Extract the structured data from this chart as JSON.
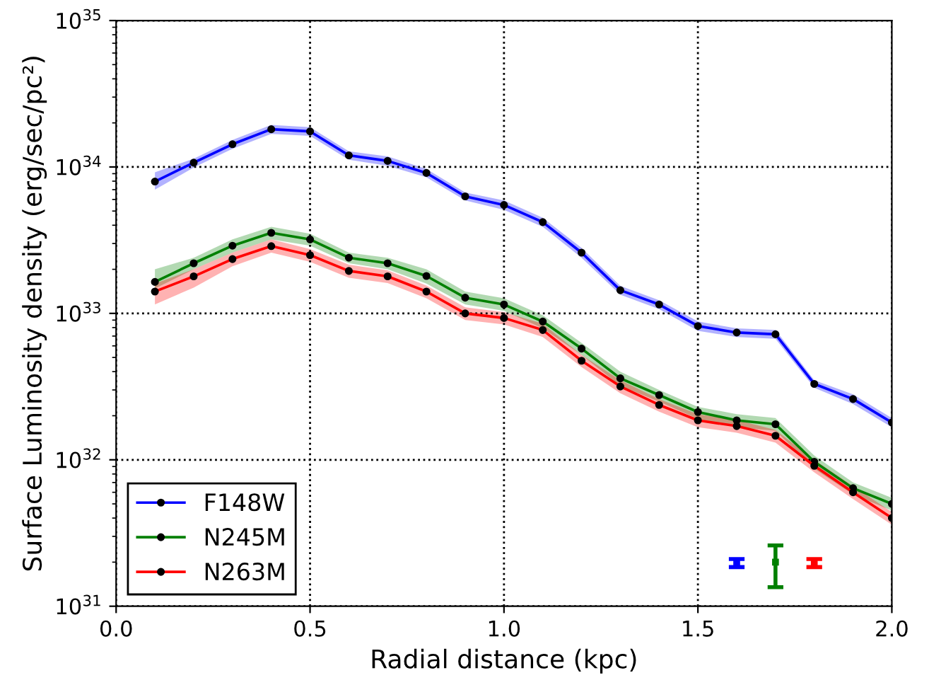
{
  "chart_data": {
    "type": "line",
    "xlabel": "Radial distance (kpc)",
    "ylabel": "Surface Luminosity density (erg/sec/pc²)",
    "x": [
      0.1,
      0.2,
      0.3,
      0.4,
      0.5,
      0.6,
      0.7,
      0.8,
      0.9,
      1.0,
      1.1,
      1.2,
      1.3,
      1.4,
      1.5,
      1.6,
      1.7,
      1.8,
      1.9,
      2.0
    ],
    "log": "y",
    "xlim": [
      0.0,
      2.0
    ],
    "xticks": [
      {
        "value": 0,
        "label": "0.0"
      },
      0.5,
      {
        "value": 1,
        "label": "1.0"
      },
      1.5,
      {
        "value": 2,
        "label": "2.0"
      }
    ],
    "ylim": [
      1e+31,
      1e+35
    ],
    "yticks": [
      {
        "value": 1e+31,
        "label": "10$^{31}$"
      },
      {
        "value": 1e+32,
        "label": "10$^{32}$"
      },
      {
        "value": 1e+33,
        "label": "10$^{33}$"
      },
      {
        "value": 1e+34,
        "label": "10$^{34}$"
      },
      {
        "value": 1e+35,
        "label": "10$^{35}$"
      }
    ],
    "grid": true,
    "legend": "bottom left",
    "marker": "circle",
    "line_style": "solid",
    "series": [
      {
        "name": "F148W",
        "color": "#0000ff",
        "values": [
          7.95e+33,
          1.07e+34,
          1.43e+34,
          1.81e+34,
          1.75e+34,
          1.2e+34,
          1.1e+34,
          9.1e+33,
          6.3e+33,
          5.5e+33,
          4.2e+33,
          2.6e+33,
          1.44e+33,
          1.15e+33,
          8.2e+32,
          7.4e+32,
          7.2e+32,
          3.3e+32,
          2.6e+32,
          1.8e+32
        ],
        "lower": [
          7e+33,
          9.9e+33,
          1.33e+34,
          1.68e+34,
          1.63e+34,
          1.12e+34,
          1.02e+34,
          8.5e+33,
          5.9e+33,
          5.1e+33,
          3.9e+33,
          2.4e+33,
          1.34e+33,
          1.07e+33,
          7.6e+32,
          6.9e+32,
          6.7e+32,
          3.1e+32,
          2.4e+32,
          1.67e+32
        ],
        "upper": [
          9.2e+33,
          1.14e+34,
          1.53e+34,
          1.94e+34,
          1.87e+34,
          1.28e+34,
          1.18e+34,
          9.7e+33,
          6.7e+33,
          5.9e+33,
          4.5e+33,
          2.8e+33,
          1.54e+33,
          1.23e+33,
          8.8e+32,
          7.9e+32,
          7.7e+32,
          3.5e+32,
          2.8e+32,
          1.93e+32
        ]
      },
      {
        "name": "N245M",
        "color": "#008000",
        "values": [
          1.64e+33,
          2.2e+33,
          2.9e+33,
          3.55e+33,
          3.2e+33,
          2.4e+33,
          2.2e+33,
          1.8e+33,
          1.28e+33,
          1.15e+33,
          8.8e+32,
          5.75e+32,
          3.6e+32,
          2.77e+32,
          2.12e+32,
          1.86e+32,
          1.75e+32,
          9.7e+31,
          6.4e+31,
          5e+31
        ],
        "lower": [
          1.48e+33,
          2e+33,
          2.6e+33,
          3.2e+33,
          2.9e+33,
          2.2e+33,
          2e+33,
          1.6e+33,
          1.15e+33,
          1.04e+33,
          7.9e+32,
          5.2e+32,
          3.2e+32,
          2.5e+32,
          1.9e+32,
          1.67e+32,
          1.58e+32,
          8.7e+31,
          5.8e+31,
          4.5e+31
        ],
        "upper": [
          2e+33,
          2.4e+33,
          3.2e+33,
          3.9e+33,
          3.5e+33,
          2.6e+33,
          2.4e+33,
          2e+33,
          1.41e+33,
          1.27e+33,
          9.7e+32,
          6.3e+32,
          4e+32,
          3e+32,
          2.3e+32,
          2.05e+32,
          1.93e+32,
          1.07e+32,
          7e+31,
          5.5e+31
        ]
      },
      {
        "name": "N263M",
        "color": "#ff0000",
        "values": [
          1.41e+33,
          1.79e+33,
          2.35e+33,
          2.88e+33,
          2.5e+33,
          1.95e+33,
          1.79e+33,
          1.41e+33,
          1e+33,
          9.3e+32,
          7.7e+32,
          4.75e+32,
          3.17e+32,
          2.37e+32,
          1.86e+32,
          1.7e+32,
          1.46e+32,
          9.1e+31,
          6e+31,
          4e+31
        ],
        "lower": [
          1.15e+33,
          1.5e+33,
          2.1e+33,
          2.6e+33,
          2.25e+33,
          1.75e+33,
          1.61e+33,
          1.27e+33,
          9e+32,
          8.4e+32,
          6.9e+32,
          4.3e+32,
          2.85e+32,
          2.13e+32,
          1.67e+32,
          1.53e+32,
          1.31e+32,
          8.2e+31,
          5.4e+31,
          3.6e+31
        ],
        "upper": [
          1.6e+33,
          2e+33,
          2.6e+33,
          3.2e+33,
          2.75e+33,
          2.15e+33,
          1.97e+33,
          1.55e+33,
          1.1e+33,
          1.02e+33,
          8.5e+32,
          5.2e+32,
          3.5e+32,
          2.6e+32,
          2.05e+32,
          1.87e+32,
          1.6e+32,
          1e+32,
          6.6e+31,
          4.4e+31
        ]
      },
      {
        "type": "scatter",
        "marker": "square",
        "color": "#0000ff",
        "x": [
          1.6
        ],
        "values": [
          2e+31
        ],
        "errors": [
          [
            1.85e+31,
            2.1e+31
          ]
        ]
      },
      {
        "type": "scatter",
        "marker": "square",
        "color": "#008000",
        "x": [
          1.7
        ],
        "values": [
          2e+31
        ],
        "errors": [
          [
            1.35e+31,
            2.6e+31
          ]
        ]
      },
      {
        "type": "scatter",
        "marker": "square",
        "color": "#ff0000",
        "x": [
          1.8
        ],
        "values": [
          2e+31
        ],
        "errors": [
          [
            1.85e+31,
            2.1e+31
          ]
        ]
      }
    ]
  }
}
